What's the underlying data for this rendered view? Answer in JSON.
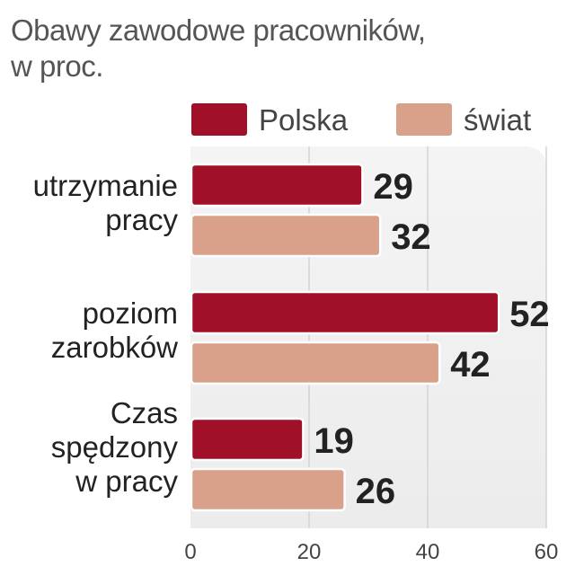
{
  "chart_data": {
    "type": "bar",
    "orientation": "horizontal",
    "title_lines": [
      "Obawy zawodowe pracowników,",
      "w proc."
    ],
    "categories": [
      [
        "utrzymanie",
        "pracy"
      ],
      [
        "poziom",
        "zarobków"
      ],
      [
        "Czas",
        "spędzony",
        "w pracy"
      ]
    ],
    "series": [
      {
        "name": "Polska",
        "values": [
          29,
          52,
          19
        ],
        "color": "#a01028"
      },
      {
        "name": "świat",
        "values": [
          32,
          42,
          26
        ],
        "color": "#d9a08a"
      }
    ],
    "xlim": [
      0,
      60
    ],
    "xticks": [
      "0",
      "20",
      "40",
      "60"
    ],
    "tick_values": [
      0,
      20,
      40,
      60
    ],
    "grid": true,
    "legend_position": "top-right"
  }
}
